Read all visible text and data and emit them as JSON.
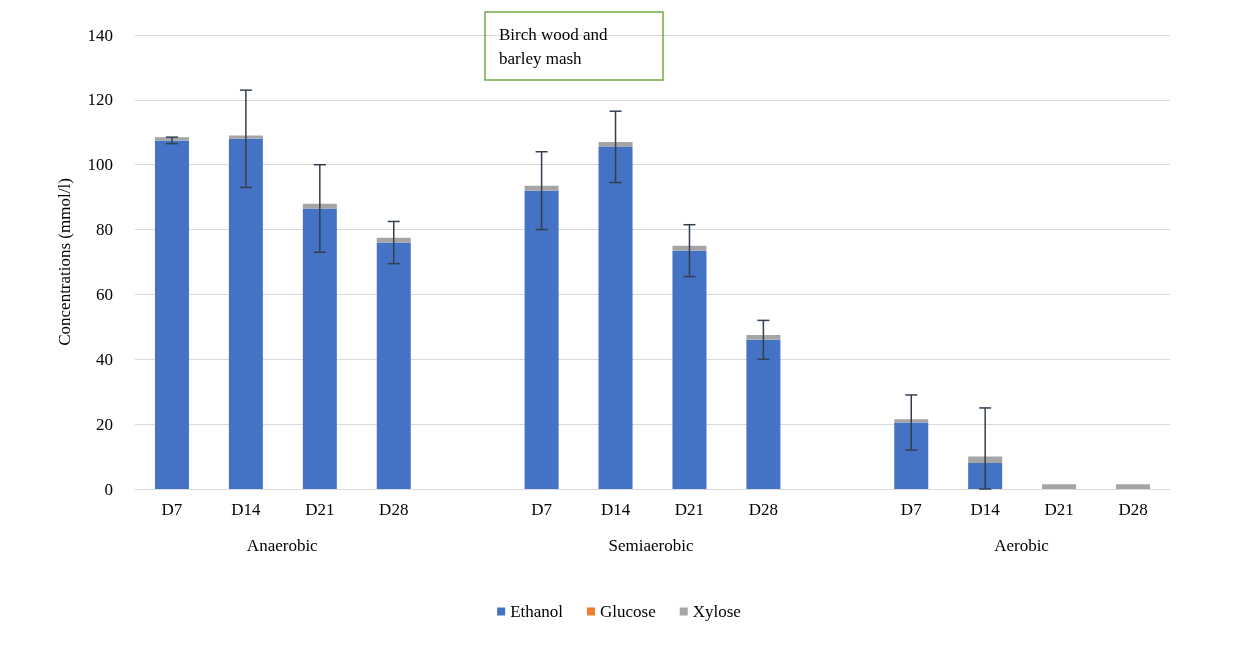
{
  "chart_data": {
    "type": "bar",
    "title": "Birch wood and barley mash",
    "ylabel": "Concentrations (mmol/l)",
    "categories": [
      "D7",
      "D14",
      "D21",
      "D28",
      null,
      "D7",
      "D14",
      "D21",
      "D28",
      null,
      "D7",
      "D14",
      "D21",
      "D28"
    ],
    "series": [
      {
        "name": "Ethanol",
        "color": "#4472c4",
        "values": [
          107.5,
          108,
          86.5,
          76,
          null,
          92,
          105.5,
          73.5,
          46,
          null,
          20.5,
          8,
          0,
          0
        ],
        "errors": [
          1,
          15,
          13.5,
          6.5,
          null,
          12,
          11,
          8,
          6,
          null,
          8.5,
          [
            0,
            25
          ],
          null,
          null
        ]
      },
      {
        "name": "Glucose",
        "color": "#ed7d31",
        "values": [
          0,
          0,
          0,
          0,
          null,
          0,
          0,
          0,
          0,
          null,
          0,
          0,
          0,
          0
        ]
      },
      {
        "name": "Xylose",
        "color": "#a5a5a5",
        "values": [
          1,
          1,
          1.5,
          1.5,
          null,
          1.5,
          1.5,
          1.5,
          1.5,
          null,
          1,
          2,
          1.5,
          1.5
        ]
      }
    ],
    "stacked": true,
    "ylim": [
      0,
      140
    ],
    "yticks": [
      0,
      20,
      40,
      60,
      80,
      100,
      120,
      140
    ],
    "grid": "y",
    "legend": "bottom",
    "annotations": [
      "Anaerobic",
      "Semiaerobic",
      "Aerobic"
    ]
  }
}
